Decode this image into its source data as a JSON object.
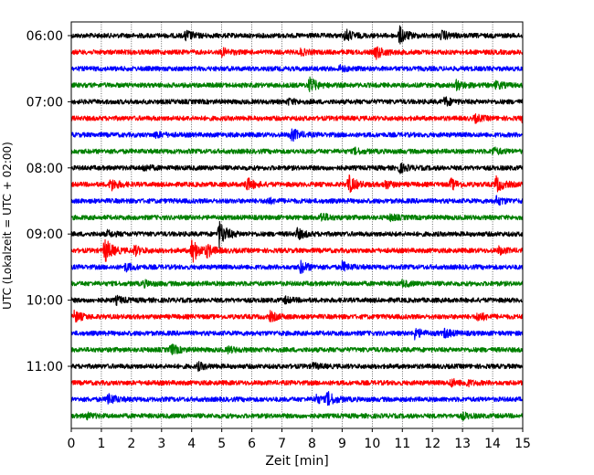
{
  "chart_data": {
    "type": "line",
    "title": "",
    "xlabel": "Zeit  [min]",
    "ylabel": "UTC (Lokalzeit = UTC + 02:00)",
    "xlim": [
      0,
      15
    ],
    "x_ticks": [
      "0",
      "1",
      "2",
      "3",
      "4",
      "5",
      "6",
      "7",
      "8",
      "9",
      "10",
      "11",
      "12",
      "13",
      "14",
      "15"
    ],
    "y_ticks": [
      "06:00",
      "07:00",
      "08:00",
      "09:00",
      "10:00",
      "11:00"
    ],
    "grid": "vertical dotted at each minute",
    "trace_interval_min": 15,
    "trace_colors": [
      "#000000",
      "#ff0000",
      "#0000ff",
      "#008000"
    ],
    "traces": [
      {
        "start": "06:00",
        "color": "#000000",
        "events": [
          [
            3.8,
            0.6
          ],
          [
            10.9,
            1.0
          ],
          [
            9.1,
            0.7
          ],
          [
            12.3,
            0.5
          ]
        ]
      },
      {
        "start": "06:15",
        "color": "#ff0000",
        "events": [
          [
            10.1,
            0.8
          ],
          [
            5.0,
            0.4
          ],
          [
            7.6,
            0.3
          ]
        ]
      },
      {
        "start": "06:30",
        "color": "#0000ff",
        "events": [
          [
            8.9,
            0.3
          ]
        ]
      },
      {
        "start": "06:45",
        "color": "#008000",
        "events": [
          [
            7.9,
            0.9
          ],
          [
            12.8,
            0.5
          ],
          [
            14.1,
            0.4
          ]
        ]
      },
      {
        "start": "07:00",
        "color": "#000000",
        "events": [
          [
            12.4,
            0.5
          ],
          [
            7.2,
            0.3
          ]
        ]
      },
      {
        "start": "07:15",
        "color": "#ff0000",
        "events": [
          [
            15.0,
            0.6
          ],
          [
            13.4,
            0.4
          ]
        ]
      },
      {
        "start": "07:30",
        "color": "#0000ff",
        "events": [
          [
            7.3,
            0.8
          ],
          [
            2.8,
            0.3
          ]
        ]
      },
      {
        "start": "07:45",
        "color": "#008000",
        "events": [
          [
            9.4,
            0.3
          ],
          [
            14.0,
            0.4
          ]
        ]
      },
      {
        "start": "08:00",
        "color": "#000000",
        "events": [
          [
            10.9,
            0.5
          ],
          [
            2.4,
            0.3
          ]
        ]
      },
      {
        "start": "08:15",
        "color": "#ff0000",
        "events": [
          [
            1.3,
            0.7
          ],
          [
            5.8,
            0.8
          ],
          [
            9.2,
            1.1
          ],
          [
            10.4,
            0.5
          ],
          [
            12.6,
            0.6
          ],
          [
            14.1,
            0.9
          ]
        ]
      },
      {
        "start": "08:30",
        "color": "#0000ff",
        "events": [
          [
            14.1,
            0.5
          ],
          [
            6.5,
            0.3
          ]
        ]
      },
      {
        "start": "08:45",
        "color": "#008000",
        "events": [
          [
            8.3,
            0.5
          ],
          [
            10.6,
            0.3
          ]
        ]
      },
      {
        "start": "09:00",
        "color": "#000000",
        "events": [
          [
            4.9,
            1.6
          ],
          [
            7.5,
            0.6
          ],
          [
            1.2,
            0.3
          ]
        ]
      },
      {
        "start": "09:15",
        "color": "#ff0000",
        "events": [
          [
            1.1,
            1.5
          ],
          [
            4.0,
            1.5
          ],
          [
            4.5,
            0.6
          ],
          [
            2.1,
            0.5
          ],
          [
            14.2,
            0.4
          ]
        ]
      },
      {
        "start": "09:30",
        "color": "#0000ff",
        "events": [
          [
            7.6,
            0.7
          ],
          [
            9.0,
            0.5
          ],
          [
            1.8,
            0.4
          ]
        ]
      },
      {
        "start": "09:45",
        "color": "#008000",
        "events": [
          [
            2.4,
            0.3
          ],
          [
            11.0,
            0.3
          ]
        ]
      },
      {
        "start": "10:00",
        "color": "#000000",
        "events": [
          [
            1.5,
            0.4
          ],
          [
            7.1,
            0.3
          ]
        ]
      },
      {
        "start": "10:15",
        "color": "#ff0000",
        "events": [
          [
            0.1,
            0.6
          ],
          [
            6.6,
            0.5
          ],
          [
            13.5,
            0.5
          ]
        ]
      },
      {
        "start": "10:30",
        "color": "#0000ff",
        "events": [
          [
            11.4,
            0.6
          ],
          [
            12.4,
            0.5
          ]
        ]
      },
      {
        "start": "10:45",
        "color": "#008000",
        "events": [
          [
            3.3,
            0.6
          ],
          [
            5.2,
            0.3
          ]
        ]
      },
      {
        "start": "11:00",
        "color": "#000000",
        "events": [
          [
            4.2,
            0.4
          ],
          [
            8.0,
            0.3
          ]
        ]
      },
      {
        "start": "11:15",
        "color": "#ff0000",
        "events": [
          [
            12.6,
            0.4
          ],
          [
            13.1,
            0.3
          ]
        ]
      },
      {
        "start": "11:30",
        "color": "#0000ff",
        "events": [
          [
            1.2,
            0.7
          ],
          [
            8.5,
            0.8
          ],
          [
            8.1,
            0.5
          ]
        ]
      },
      {
        "start": "11:45",
        "color": "#008000",
        "events": [
          [
            13.0,
            0.3
          ],
          [
            0.5,
            0.3
          ]
        ]
      }
    ]
  }
}
